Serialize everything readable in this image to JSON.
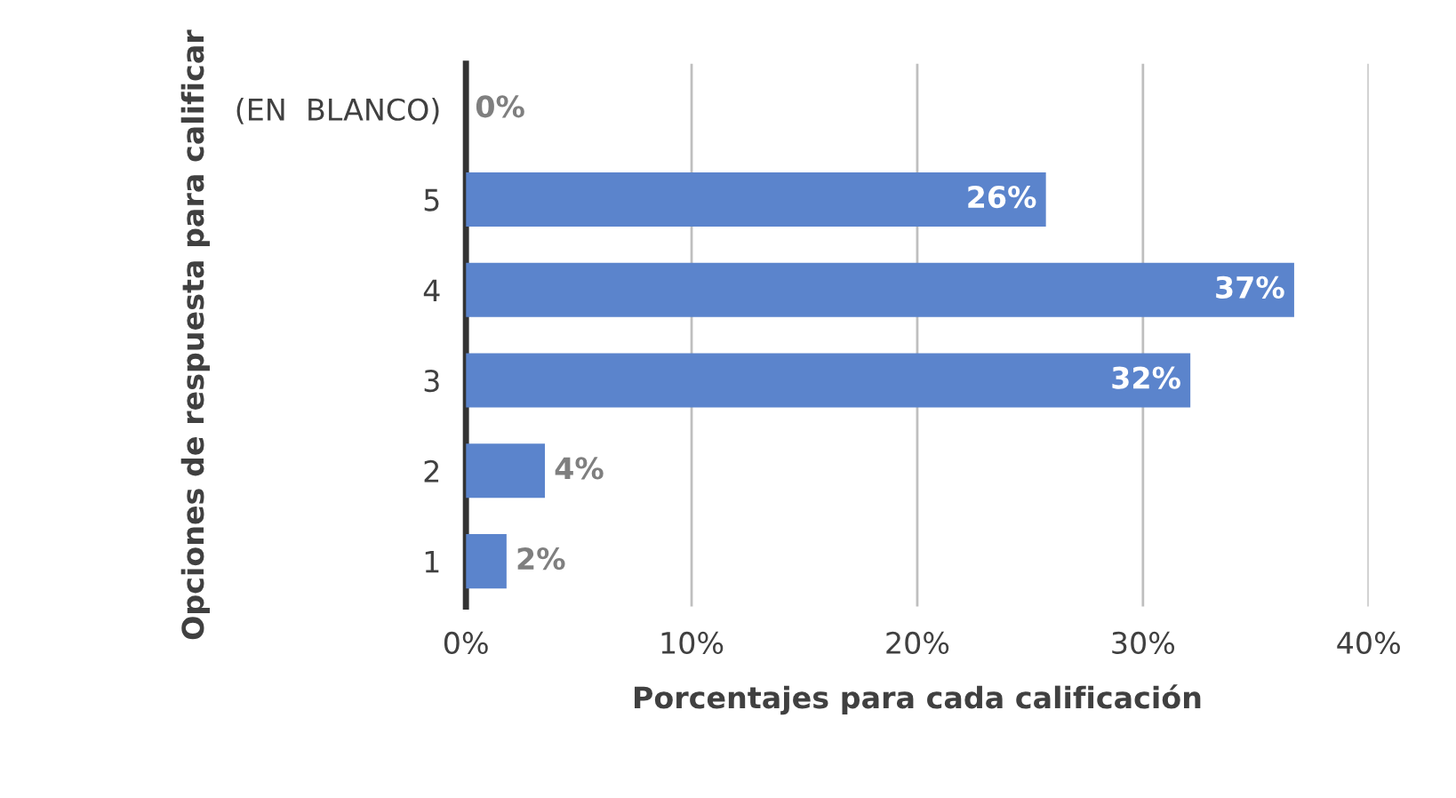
{
  "chart_data": {
    "type": "bar",
    "orientation": "horizontal",
    "xlabel": "Porcentajes para cada calificación",
    "ylabel": "Opciones de respuesta para calificar",
    "categories": [
      "(EN  BLANCO)",
      "5",
      "4",
      "3",
      "2",
      "1"
    ],
    "values": [
      0,
      25.7,
      36.7,
      32.1,
      3.5,
      1.8
    ],
    "value_labels": [
      "0%",
      "26%",
      "37%",
      "32%",
      "4%",
      "2%"
    ],
    "color": "#5b84cc",
    "xlim": [
      0,
      40
    ],
    "xticks": [
      {
        "value": 0,
        "label": "0%"
      },
      {
        "value": 10,
        "label": "10%"
      },
      {
        "value": 20,
        "label": "20%"
      },
      {
        "value": 30,
        "label": "30%"
      },
      {
        "value": 40,
        "label": "40%"
      }
    ],
    "grid": "x",
    "legend": false
  }
}
